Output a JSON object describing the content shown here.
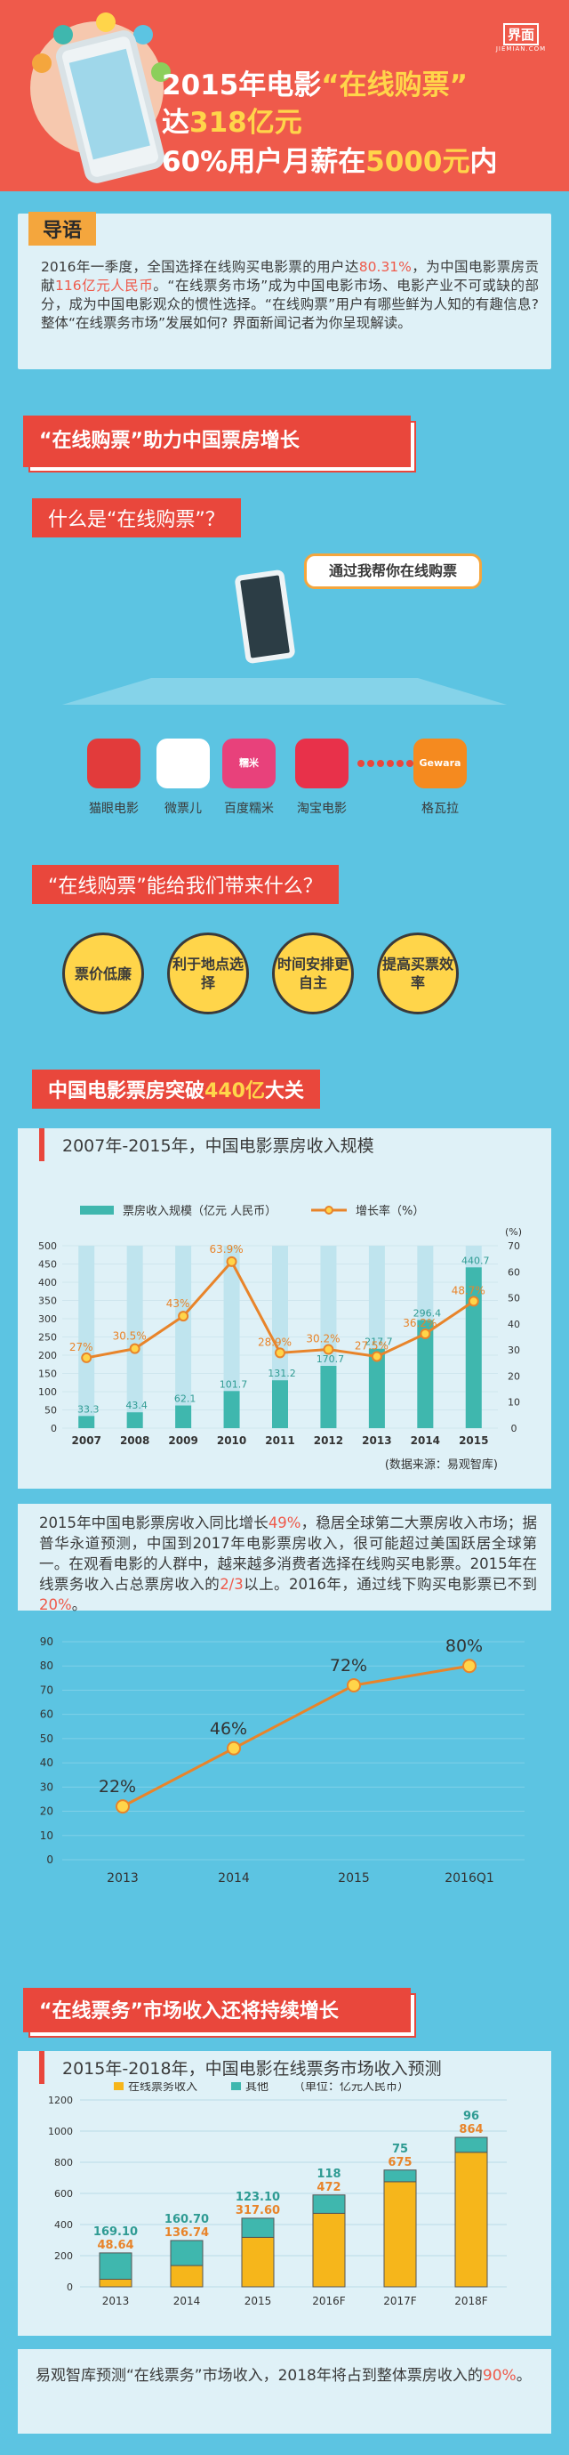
{
  "header": {
    "line1_a": "2015年电影",
    "line1_q": "“在线购票”",
    "line2_a": "达",
    "line2_b": "318亿元",
    "line3_a": "60%用户月薪在",
    "line3_b": "5000元",
    "line3_c": "内",
    "logo": "界面",
    "logo_sub": "JIEMIAN.COM"
  },
  "intro": {
    "tag": "导语",
    "p1": "2016年一季度，全国选择在线购买电影票的用户达",
    "p1_hl": "80.31%",
    "p2": "，为中国电影票房贡献",
    "p2_hl": "116亿元人民币",
    "p3": "。“在线票务市场”成为中国电影市场、电影产业不可或缺的部分，成为中国电影观众的惯性选择。“在线购票”用户有哪些鲜为人知的有趣信息? 整体“在线票务市场”发展如何? 界面新闻记者为你呈现解读。"
  },
  "section1": {
    "banner": "“在线购票”助力中国票房增长",
    "q1": "什么是“在线购票”？",
    "speech": "通过我帮你在线购票",
    "apps": [
      {
        "label": "猫眼电影",
        "color": "#e23b3b",
        "icon": "cat-face-icon"
      },
      {
        "label": "微票儿",
        "color": "#ffffff",
        "icon": "penguin-icon"
      },
      {
        "label": "百度糯米",
        "color": "#e8417b",
        "icon": "nuomi-icon",
        "icon_text": "糯米"
      },
      {
        "label": "淘宝电影",
        "color": "#e8314a",
        "icon": "glasses-icon"
      },
      {
        "label": "格瓦拉",
        "color": "#f58a1f",
        "icon": "gewara-icon",
        "icon_text": "Gewara"
      }
    ],
    "q2": "“在线购票”能给我们带来什么？",
    "benefits": [
      "票价低廉",
      "利于地点选择",
      "时间安排更自主",
      "提高买票效率"
    ]
  },
  "section2": {
    "banner": "中国电影票房突破",
    "banner_num": "440亿",
    "banner_end": "大关",
    "subtitle": "2007年-2015年，中国电影票房收入规模",
    "source": "(数据来源：易观智库)",
    "para": {
      "a": "2015年中国电影票房收入同比增长",
      "a_hl": "49%",
      "b": "，稳居全球第二大票房收入市场；据普华永道预测，中国到2017年电影票房收入，很可能超过美国跃居全球第一。在观看电影的人群中，越来越多消费者选择在线购买电影票。2015年在线票务收入占总票房收入的",
      "b_hl": "2/3",
      "c": "以上。2016年，通过线下购买电影票已不到",
      "c_hl": "20%",
      "d": "。"
    }
  },
  "section3": {
    "banner": "“在线票务”市场收入还将持续增长",
    "subtitle": "2015年-2018年，中国电影在线票务市场收入预测",
    "para_a": "易观智库预测“在线票务”市场收入，2018年将占到整体票房收入的",
    "para_hl": "90%",
    "para_b": "。"
  },
  "colors": {
    "red": "#e9473c",
    "orange": "#e8842a",
    "teal": "#3fb7ae",
    "yellow": "#f6b61b",
    "blue": "#5cc4e2"
  },
  "chart_data": [
    {
      "type": "bar",
      "title": "2007年-2015年，中国电影票房收入规模",
      "categories": [
        "2007",
        "2008",
        "2009",
        "2010",
        "2011",
        "2012",
        "2013",
        "2014",
        "2015"
      ],
      "series": [
        {
          "name": "票房收入规模（亿元 人民币）",
          "kind": "bar",
          "values": [
            33.3,
            43.4,
            62.1,
            101.7,
            131.2,
            170.7,
            217.7,
            296.4,
            440.7
          ]
        },
        {
          "name": "增长率（%）",
          "kind": "line",
          "values": [
            27,
            30.5,
            43,
            63.9,
            28.9,
            30.2,
            27.5,
            36.2,
            48.7
          ]
        }
      ],
      "value_labels": [
        "33.3",
        "43.4",
        "62.1",
        "101.7",
        "131.2",
        "170.7",
        "217.7",
        "296.4",
        "440.7"
      ],
      "rate_labels": [
        "27%",
        "30.5%",
        "43%",
        "63.9%",
        "28.9%",
        "30.2%",
        "27.5%",
        "36.2%",
        "48.7%"
      ],
      "ylim_left": [
        0,
        500
      ],
      "ylim_right": [
        0,
        70
      ],
      "y_ticks_left": [
        "500",
        "450",
        "400",
        "350",
        "300",
        "250",
        "200",
        "150",
        "100",
        "50",
        "0"
      ],
      "y_ticks_right": [
        "70",
        "60",
        "50",
        "40",
        "30",
        "20",
        "10",
        "0"
      ],
      "right_unit": "(%)",
      "grid": true,
      "legend": "top"
    },
    {
      "type": "line",
      "categories": [
        "2013",
        "2014",
        "2015",
        "2016Q1"
      ],
      "values": [
        22,
        46,
        72,
        80
      ],
      "labels": [
        "22%",
        "46%",
        "72%",
        "80%"
      ],
      "ylim": [
        0,
        90
      ],
      "y_ticks": [
        "90",
        "80",
        "70",
        "60",
        "50",
        "40",
        "30",
        "20",
        "10",
        "0"
      ],
      "grid": true
    },
    {
      "type": "bar",
      "stacked": true,
      "title": "2015年-2018年，中国电影在线票务市场收入预测",
      "categories": [
        "2013",
        "2014",
        "2015",
        "2016F",
        "2017F",
        "2018F"
      ],
      "series": [
        {
          "name": "在线票务收入",
          "values": [
            48.64,
            136.74,
            317.6,
            472,
            675,
            864
          ],
          "labels": [
            "48.64",
            "136.74",
            "317.60",
            "472",
            "675",
            "864"
          ]
        },
        {
          "name": "其他",
          "values": [
            169.1,
            160.7,
            123.1,
            118,
            75,
            96
          ],
          "labels": [
            "169.10",
            "160.70",
            "123.10",
            "118",
            "75",
            "96"
          ]
        }
      ],
      "unit": "（单位：亿元人民币）",
      "ylim": [
        0,
        1200
      ],
      "y_ticks": [
        "1200",
        "1000",
        "800",
        "600",
        "400",
        "200",
        "0"
      ],
      "grid": true,
      "legend": "top"
    }
  ]
}
